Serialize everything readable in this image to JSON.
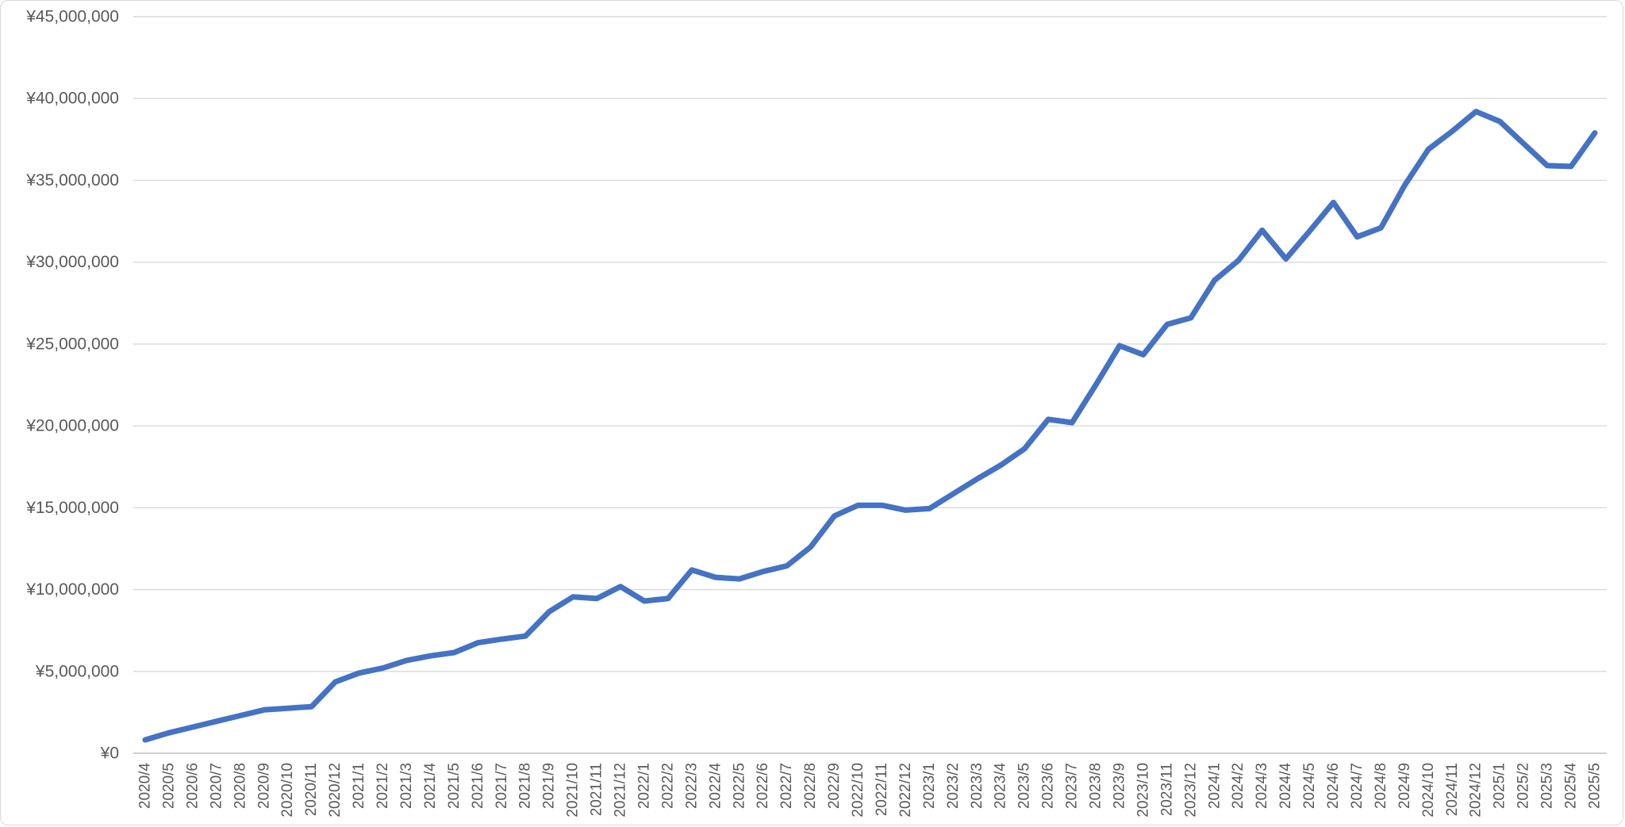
{
  "chart_frame": {
    "background": "#FFFFFF",
    "border_color": "#D9D9D9"
  },
  "chart_data": {
    "type": "line",
    "title": "",
    "legend": "none",
    "grid": {
      "horizontal": true,
      "vertical": false,
      "color": "#D9D9D9",
      "axis_line_color": "#BFBFBF"
    },
    "text_color": "#595959",
    "categories": [
      "2020/4",
      "2020/5",
      "2020/6",
      "2020/7",
      "2020/8",
      "2020/9",
      "2020/10",
      "2020/11",
      "2020/12",
      "2021/1",
      "2021/2",
      "2021/3",
      "2021/4",
      "2021/5",
      "2021/6",
      "2021/7",
      "2021/8",
      "2021/9",
      "2021/10",
      "2021/11",
      "2021/12",
      "2022/1",
      "2022/2",
      "2022/3",
      "2022/4",
      "2022/5",
      "2022/6",
      "2022/7",
      "2022/8",
      "2022/9",
      "2022/10",
      "2022/11",
      "2022/12",
      "2023/1",
      "2023/2",
      "2023/3",
      "2023/4",
      "2023/5",
      "2023/6",
      "2023/7",
      "2023/8",
      "2023/9",
      "2023/10",
      "2023/11",
      "2023/12",
      "2024/1",
      "2024/2",
      "2024/3",
      "2024/4",
      "2024/5",
      "2024/6",
      "2024/7",
      "2024/8",
      "2024/9",
      "2024/10",
      "2024/11",
      "2024/12",
      "2025/1",
      "2025/2",
      "2025/3",
      "2025/4",
      "2025/5"
    ],
    "series": [
      {
        "name": "",
        "color": "#4472C4",
        "values": [
          820000,
          1250000,
          1600000,
          1950000,
          2300000,
          2650000,
          2750000,
          2850000,
          4360000,
          4900000,
          5200000,
          5670000,
          5950000,
          6150000,
          6750000,
          6970000,
          7160000,
          8650000,
          9550000,
          9450000,
          10180000,
          9300000,
          9450000,
          11200000,
          10750000,
          10650000,
          11100000,
          11450000,
          12600000,
          14500000,
          15150000,
          15150000,
          14850000,
          14950000,
          15850000,
          16750000,
          17600000,
          18600000,
          20400000,
          20200000,
          22500000,
          24900000,
          24350000,
          26200000,
          26600000,
          28900000,
          30100000,
          31950000,
          30200000,
          31900000,
          33650000,
          31550000,
          32100000,
          34700000,
          36900000,
          38000000,
          39200000,
          38600000,
          37250000,
          35900000,
          35850000,
          37900000
        ]
      }
    ],
    "x_axis": {
      "tick_rotation_deg": -90
    },
    "y_axis": {
      "min": 0,
      "max": 45000000,
      "step": 5000000,
      "currency_symbol": "¥",
      "tick_labels": [
        "¥0",
        "¥5,000,000",
        "¥10,000,000",
        "¥15,000,000",
        "¥20,000,000",
        "¥25,000,000",
        "¥30,000,000",
        "¥35,000,000",
        "¥40,000,000",
        "¥45,000,000"
      ]
    }
  }
}
